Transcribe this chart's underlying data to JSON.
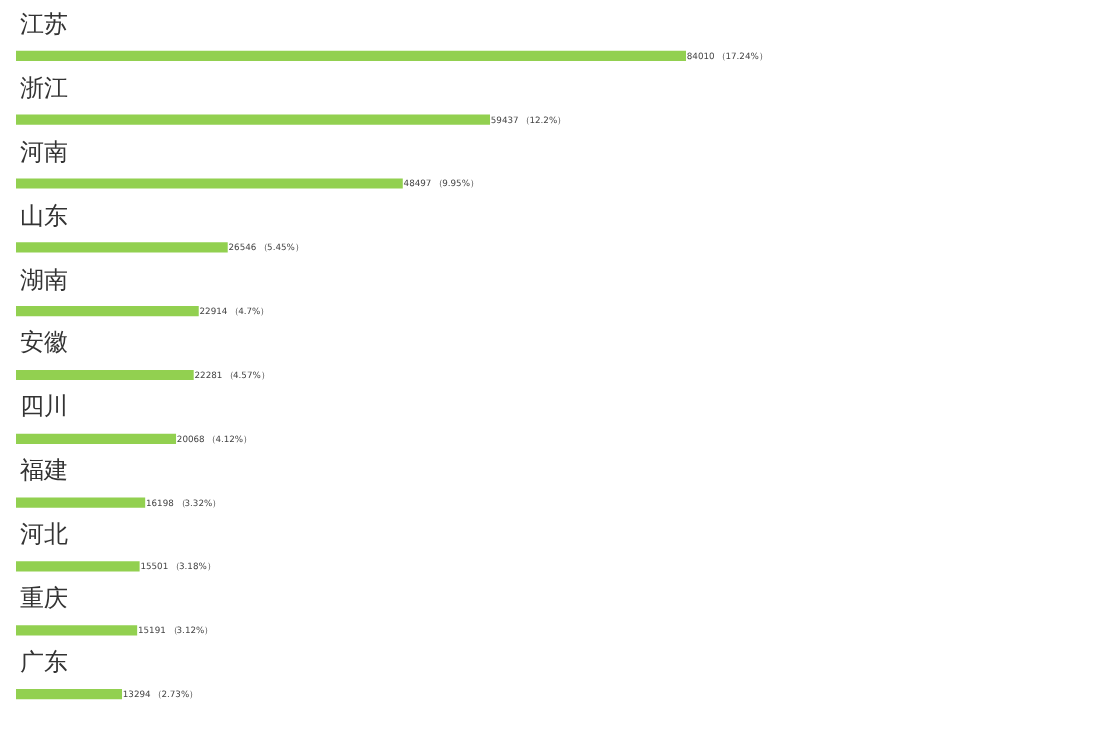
{
  "chart_data": {
    "type": "bar",
    "orientation": "horizontal",
    "categories": [
      "江苏",
      "浙江",
      "河南",
      "山东",
      "湖南",
      "安徽",
      "四川",
      "福建",
      "河北",
      "重庆",
      "广东"
    ],
    "values": [
      84010,
      59437,
      48497,
      26546,
      22914,
      22281,
      20068,
      16198,
      15501,
      15191,
      13294
    ],
    "value_labels": [
      "84010 （17.24%）",
      "59437 （12.2%）",
      "48497 （9.95%）",
      "26546 （5.45%）",
      "22914 （4.7%）",
      "22281 （4.57%）",
      "20068 （4.12%）",
      "16198 （3.32%）",
      "15501 （3.18%）",
      "15191 （3.12%）",
      "13294 （2.73%）"
    ],
    "color": "#92d050",
    "legend": false
  }
}
